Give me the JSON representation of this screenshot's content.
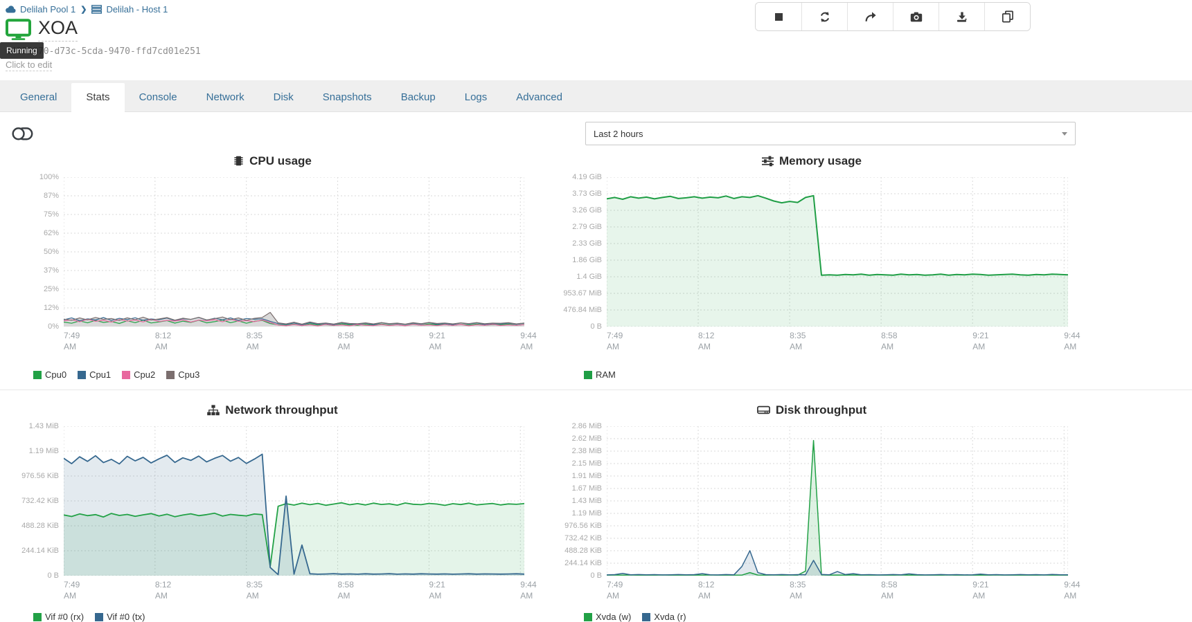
{
  "breadcrumb": {
    "pool": "Delilah Pool 1",
    "host": "Delilah - Host 1"
  },
  "vm": {
    "name": "XOA",
    "uuid": "d4352870-d73c-5cda-9470-ffd7cd01e251",
    "state_tooltip": "Running",
    "description_placeholder": "Click to edit"
  },
  "toolbar": {
    "buttons": [
      "stop-icon",
      "refresh-icon",
      "share-icon",
      "camera-icon",
      "download-icon",
      "copy-icon"
    ]
  },
  "tabs": [
    {
      "label": "General",
      "active": false
    },
    {
      "label": "Stats",
      "active": true
    },
    {
      "label": "Console",
      "active": false
    },
    {
      "label": "Network",
      "active": false
    },
    {
      "label": "Disk",
      "active": false
    },
    {
      "label": "Snapshots",
      "active": false
    },
    {
      "label": "Backup",
      "active": false
    },
    {
      "label": "Logs",
      "active": false
    },
    {
      "label": "Advanced",
      "active": false
    }
  ],
  "controls": {
    "time_range": {
      "value": "Last 2 hours"
    }
  },
  "colors": {
    "link_blue": "#366f98",
    "green": "#22a146",
    "blue": "#36688f",
    "pink": "#e8679e",
    "gray": "#7b6e6e",
    "state_running_green": "#23a53c"
  },
  "chart_data": [
    {
      "id": "cpu",
      "type": "area",
      "title": "CPU usage",
      "icon": "cpu-chip-icon",
      "unit": "%",
      "y_ticks": [
        "100%",
        "87%",
        "75%",
        "62%",
        "50%",
        "37%",
        "25%",
        "12%",
        "0%"
      ],
      "y_max": 100,
      "x_ticks": [
        "7:49 AM",
        "8:12 AM",
        "8:35 AM",
        "8:58 AM",
        "9:21 AM",
        "9:44 AM"
      ],
      "x_tick_minutes": [
        0,
        23,
        46,
        69,
        92,
        115
      ],
      "x_max": 116,
      "x_step_minutes": 2,
      "series": [
        {
          "name": "Cpu0",
          "color": "#22a146",
          "width": 1.2,
          "values": [
            3.0,
            2.2,
            3.8,
            2.5,
            4.1,
            2.8,
            3.4,
            2.1,
            3.9,
            2.6,
            4.3,
            2.4,
            3.1,
            4.0,
            2.3,
            3.6,
            2.8,
            4.2,
            2.5,
            3.3,
            4.4,
            2.6,
            3.8,
            2.2,
            3.5,
            4.1,
            2.0,
            1.2,
            0.8,
            1.6,
            0.6,
            1.9,
            1.0,
            1.4,
            0.7,
            1.8,
            1.1,
            0.9,
            1.5,
            0.8,
            1.7,
            1.0,
            1.3,
            0.6,
            1.6,
            0.9,
            1.8,
            1.1,
            1.4,
            0.8,
            1.5,
            1.0,
            1.7,
            0.9,
            1.3,
            1.2,
            1.6,
            0.8,
            1.4
          ]
        },
        {
          "name": "Cpu1",
          "color": "#36688f",
          "width": 1.2,
          "values": [
            4.5,
            5.8,
            3.9,
            5.2,
            4.4,
            6.0,
            4.1,
            5.5,
            4.7,
            5.9,
            4.2,
            5.1,
            4.6,
            5.7,
            4.0,
            5.3,
            4.8,
            6.1,
            4.3,
            5.6,
            4.5,
            5.8,
            4.1,
            5.4,
            4.9,
            5.2,
            3.5,
            2.0,
            1.4,
            2.4,
            1.2,
            2.6,
            1.6,
            2.1,
            1.3,
            2.5,
            1.7,
            1.5,
            2.2,
            1.2,
            2.6,
            1.8,
            2.0,
            1.4,
            2.3,
            1.6,
            2.7,
            1.5,
            2.1,
            1.3,
            2.4,
            1.7,
            2.5,
            1.4,
            2.0,
            1.8,
            2.3,
            1.5,
            2.2
          ]
        },
        {
          "name": "Cpu2",
          "color": "#e8679e",
          "width": 1.2,
          "values": [
            3.8,
            4.6,
            3.2,
            4.9,
            3.5,
            4.2,
            3.0,
            4.7,
            3.6,
            4.4,
            3.1,
            4.8,
            3.4,
            4.1,
            3.7,
            4.5,
            3.0,
            4.3,
            3.8,
            4.6,
            3.2,
            4.9,
            3.5,
            4.0,
            3.3,
            4.4,
            2.8,
            1.0,
            0.5,
            1.4,
            0.7,
            1.2,
            0.4,
            1.5,
            0.8,
            1.1,
            0.5,
            1.3,
            0.9,
            0.6,
            1.4,
            0.7,
            1.2,
            0.5,
            1.5,
            0.9,
            1.1,
            0.6,
            1.3,
            0.8,
            1.4,
            0.5,
            1.2,
            0.9,
            1.5,
            0.7,
            1.1,
            0.8,
            1.3
          ]
        },
        {
          "name": "Cpu3",
          "color": "#7b6e6e",
          "width": 1.2,
          "fill": "#d2d2d2",
          "fill_opacity": 0.85,
          "values": [
            5.0,
            4.2,
            5.8,
            4.5,
            6.1,
            4.8,
            5.4,
            4.1,
            5.9,
            4.6,
            6.3,
            4.4,
            5.1,
            6.0,
            4.3,
            5.6,
            4.8,
            6.2,
            4.5,
            5.3,
            6.4,
            4.6,
            5.8,
            4.2,
            5.5,
            6.1,
            9.5,
            2.5,
            1.8,
            2.9,
            1.6,
            3.1,
            2.0,
            2.4,
            1.7,
            2.8,
            2.1,
            1.9,
            2.5,
            1.8,
            2.7,
            2.0,
            2.3,
            1.6,
            2.6,
            1.9,
            2.8,
            2.1,
            2.4,
            1.8,
            2.5,
            2.0,
            2.7,
            1.9,
            2.3,
            2.2,
            2.6,
            1.8,
            2.4
          ]
        }
      ]
    },
    {
      "id": "memory",
      "type": "area",
      "title": "Memory usage",
      "icon": "memory-sliders-icon",
      "unit": "GiB",
      "y_ticks": [
        "4.19 GiB",
        "3.73 GiB",
        "3.26 GiB",
        "2.79 GiB",
        "2.33 GiB",
        "1.86 GiB",
        "1.4 GiB",
        "953.67 MiB",
        "476.84 MiB",
        "0 B"
      ],
      "y_max": 4.19,
      "x_ticks": [
        "7:49 AM",
        "8:12 AM",
        "8:35 AM",
        "8:58 AM",
        "9:21 AM",
        "9:44 AM"
      ],
      "x_tick_minutes": [
        0,
        23,
        46,
        69,
        92,
        115
      ],
      "x_max": 116,
      "x_step_minutes": 2,
      "series": [
        {
          "name": "RAM",
          "color": "#1f9e45",
          "width": 2,
          "fill": "#22a146",
          "fill_opacity": 0.11,
          "values": [
            3.58,
            3.62,
            3.57,
            3.64,
            3.6,
            3.63,
            3.58,
            3.62,
            3.65,
            3.59,
            3.61,
            3.64,
            3.6,
            3.63,
            3.61,
            3.66,
            3.59,
            3.64,
            3.62,
            3.67,
            3.6,
            3.52,
            3.47,
            3.51,
            3.48,
            3.62,
            3.67,
            1.44,
            1.45,
            1.44,
            1.46,
            1.45,
            1.47,
            1.44,
            1.46,
            1.45,
            1.44,
            1.47,
            1.45,
            1.46,
            1.44,
            1.45,
            1.47,
            1.44,
            1.46,
            1.45,
            1.47,
            1.46,
            1.44,
            1.45,
            1.46,
            1.47,
            1.45,
            1.44,
            1.46,
            1.45,
            1.47,
            1.46,
            1.45
          ]
        }
      ]
    },
    {
      "id": "network",
      "type": "area",
      "title": "Network throughput",
      "icon": "network-sitemap-icon",
      "unit": "KiB",
      "y_ticks": [
        "1.43 MiB",
        "1.19 MiB",
        "976.56 KiB",
        "732.42 KiB",
        "488.28 KiB",
        "244.14 KiB",
        "0 B"
      ],
      "y_max": 1464.84,
      "x_ticks": [
        "7:49 AM",
        "8:12 AM",
        "8:35 AM",
        "8:58 AM",
        "9:21 AM",
        "9:44 AM"
      ],
      "x_tick_minutes": [
        0,
        23,
        46,
        69,
        92,
        115
      ],
      "x_max": 116,
      "x_step_minutes": 2,
      "series": [
        {
          "name": "Vif #0 (rx)",
          "color": "#22a146",
          "width": 1.8,
          "fill": "#22a146",
          "fill_opacity": 0.12,
          "values": [
            595,
            580,
            605,
            588,
            598,
            575,
            610,
            590,
            600,
            582,
            596,
            608,
            585,
            602,
            578,
            594,
            606,
            588,
            598,
            612,
            584,
            600,
            592,
            586,
            604,
            598,
            90,
            680,
            705,
            692,
            710,
            696,
            708,
            690,
            702,
            714,
            695,
            706,
            693,
            711,
            698,
            704,
            691,
            712,
            700,
            696,
            708,
            702,
            689,
            705,
            697,
            710,
            694,
            701,
            707,
            693,
            703,
            699,
            706
          ]
        },
        {
          "name": "Vif #0 (tx)",
          "color": "#36688f",
          "width": 1.8,
          "fill": "#36688f",
          "fill_opacity": 0.14,
          "values": [
            1150,
            1098,
            1165,
            1120,
            1175,
            1108,
            1140,
            1095,
            1170,
            1125,
            1160,
            1105,
            1145,
            1180,
            1110,
            1155,
            1130,
            1172,
            1115,
            1150,
            1178,
            1122,
            1158,
            1100,
            1142,
            1190,
            80,
            10,
            780,
            15,
            300,
            18,
            14,
            16,
            20,
            15,
            17,
            14,
            18,
            15,
            16,
            19,
            14,
            17,
            15,
            18,
            16,
            15,
            17,
            14,
            16,
            18,
            15,
            17,
            16,
            15,
            16,
            18,
            15
          ]
        }
      ]
    },
    {
      "id": "disk",
      "type": "area",
      "title": "Disk throughput",
      "icon": "disk-drive-icon",
      "unit": "KiB",
      "y_ticks": [
        "2.86 MiB",
        "2.62 MiB",
        "2.38 MiB",
        "2.15 MiB",
        "1.91 MiB",
        "1.67 MiB",
        "1.43 MiB",
        "1.19 MiB",
        "976.56 KiB",
        "732.42 KiB",
        "488.28 KiB",
        "244.14 KiB",
        "0 B"
      ],
      "y_max": 2929.68,
      "x_ticks": [
        "7:49 AM",
        "8:12 AM",
        "8:35 AM",
        "8:58 AM",
        "9:21 AM",
        "9:44 AM"
      ],
      "x_tick_minutes": [
        0,
        23,
        46,
        69,
        92,
        115
      ],
      "x_max": 116,
      "x_step_minutes": 2,
      "series": [
        {
          "name": "Xvda (w)",
          "color": "#22a146",
          "width": 1.5,
          "fill": "#22a146",
          "fill_opacity": 0.15,
          "values": [
            10,
            12,
            9,
            14,
            10,
            12,
            9,
            13,
            10,
            12,
            9,
            11,
            10,
            13,
            9,
            12,
            10,
            11,
            60,
            12,
            10,
            13,
            9,
            12,
            10,
            90,
            2650,
            15,
            10,
            12,
            9,
            13,
            10,
            11,
            9,
            12,
            10,
            13,
            9,
            11,
            10,
            12,
            9,
            13,
            10,
            11,
            9,
            12,
            10,
            13,
            9,
            11,
            10,
            12,
            9,
            13,
            10,
            11,
            9
          ]
        },
        {
          "name": "Xvda (r)",
          "color": "#36688f",
          "width": 1.5,
          "fill": "#36688f",
          "fill_opacity": 0.15,
          "values": [
            15,
            20,
            45,
            18,
            22,
            16,
            20,
            15,
            18,
            22,
            16,
            20,
            40,
            18,
            15,
            22,
            18,
            180,
            490,
            60,
            20,
            18,
            22,
            16,
            20,
            18,
            300,
            25,
            18,
            80,
            22,
            40,
            16,
            20,
            15,
            18,
            22,
            16,
            35,
            20,
            15,
            18,
            22,
            16,
            20,
            15,
            18,
            30,
            16,
            20,
            15,
            18,
            22,
            16,
            20,
            15,
            25,
            18,
            16
          ]
        }
      ]
    }
  ]
}
